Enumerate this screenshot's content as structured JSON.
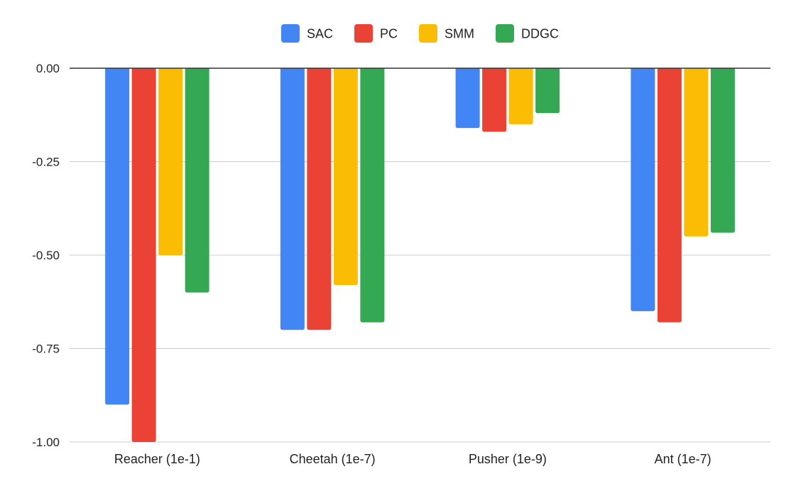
{
  "chart_data": {
    "type": "bar",
    "title": "",
    "xlabel": "",
    "ylabel": "",
    "ylim": [
      -1.0,
      0.0
    ],
    "yticks": [
      0.0,
      -0.25,
      -0.5,
      -0.75,
      -1.0
    ],
    "ytick_labels": [
      "0.00",
      "-0.25",
      "-0.50",
      "-0.75",
      "-1.00"
    ],
    "grid": true,
    "legend_position": "top-center",
    "categories": [
      "Reacher (1e-1)",
      "Cheetah (1e-7)",
      "Pusher (1e-9)",
      "Ant (1e-7)"
    ],
    "series": [
      {
        "name": "SAC",
        "color": "#4285F4",
        "values": [
          -0.9,
          -0.7,
          -0.16,
          -0.65
        ]
      },
      {
        "name": "PC",
        "color": "#EA4335",
        "values": [
          -1.0,
          -0.7,
          -0.17,
          -0.68
        ]
      },
      {
        "name": "SMM",
        "color": "#FBBC04",
        "values": [
          -0.5,
          -0.58,
          -0.15,
          -0.45
        ]
      },
      {
        "name": "DDGC",
        "color": "#34A853",
        "values": [
          -0.6,
          -0.68,
          -0.12,
          -0.44
        ]
      }
    ]
  }
}
